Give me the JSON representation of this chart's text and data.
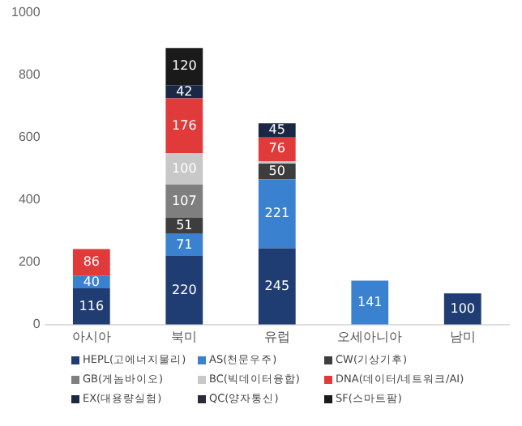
{
  "chart_data": {
    "type": "bar",
    "stacked": true,
    "categories": [
      "아시아",
      "북미",
      "유럽",
      "오세아니아",
      "남미"
    ],
    "ylim": [
      0,
      1000
    ],
    "yticks": [
      0,
      200,
      400,
      600,
      800,
      1000
    ],
    "grid": false,
    "legend": "bottom",
    "series": [
      {
        "name": "HEPL(고에너지물리)",
        "color": "#1f3d73",
        "values": [
          116,
          220,
          245,
          null,
          100
        ],
        "value_labels": [
          "116",
          "220",
          "245",
          null,
          "100"
        ]
      },
      {
        "name": "AS(천문우주)",
        "color": "#3a82d0",
        "values": [
          40,
          71,
          221,
          141,
          null
        ],
        "value_labels": [
          "40",
          "71",
          "221",
          "141",
          null
        ]
      },
      {
        "name": "CW(기상기후)",
        "color": "#3d3d3d",
        "values": [
          null,
          51,
          50,
          null,
          null
        ],
        "value_labels": [
          null,
          "51",
          "50",
          null,
          null
        ]
      },
      {
        "name": "GB(게놈바이오)",
        "color": "#7f7f7f",
        "values": [
          null,
          107,
          null,
          null,
          null
        ],
        "value_labels": [
          null,
          "107",
          null,
          null,
          null
        ]
      },
      {
        "name": "BC(빅데이터융합)",
        "color": "#c8c8c8",
        "values": [
          null,
          100,
          8,
          null,
          null
        ],
        "value_labels": [
          null,
          "100",
          null,
          null,
          null
        ]
      },
      {
        "name": "DNA(데이터/네트워크/AI)",
        "color": "#e03a3a",
        "values": [
          86,
          176,
          76,
          null,
          null
        ],
        "value_labels": [
          "86",
          "176",
          "76",
          null,
          null
        ]
      },
      {
        "name": "EX(대용량실험)",
        "color": "#1b2845",
        "values": [
          null,
          42,
          45,
          null,
          null
        ],
        "value_labels": [
          null,
          "42",
          "45",
          null,
          null
        ]
      },
      {
        "name": "QC(양자통신)",
        "color": "#2b2b3b",
        "values": [
          null,
          null,
          null,
          null,
          null
        ],
        "value_labels": [
          null,
          null,
          null,
          null,
          null
        ]
      },
      {
        "name": "SF(스마트팜)",
        "color": "#1a1a1a",
        "values": [
          null,
          120,
          null,
          null,
          null
        ],
        "value_labels": [
          null,
          "120",
          null,
          null,
          null
        ]
      }
    ]
  }
}
